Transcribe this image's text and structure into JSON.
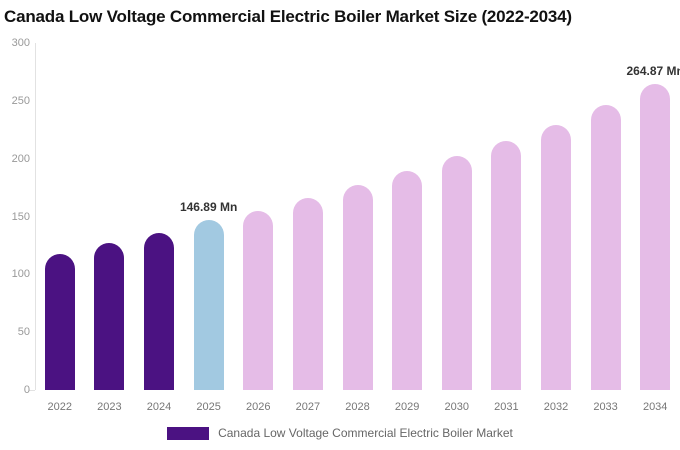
{
  "chart": {
    "title": "Canada Low Voltage Commercial Electric Boiler Market Size (2022-2034)"
  },
  "legend": {
    "label": "Canada Low Voltage Commercial Electric Boiler Market",
    "swatch_color": "#4B1282"
  },
  "chart_data": {
    "type": "bar",
    "title": "Canada Low Voltage Commercial Electric Boiler Market Size (2022-2034)",
    "xlabel": "",
    "ylabel": "",
    "categories": [
      "2022",
      "2023",
      "2024",
      "2025",
      "2026",
      "2027",
      "2028",
      "2029",
      "2030",
      "2031",
      "2032",
      "2033",
      "2034"
    ],
    "values": [
      118,
      127,
      136,
      146.89,
      155,
      166,
      177,
      189,
      202,
      215,
      229,
      246,
      264.87
    ],
    "bar_colors": [
      "#4B1282",
      "#4B1282",
      "#4B1282",
      "#A2C9E1",
      "#E5BCE7",
      "#E5BCE7",
      "#E5BCE7",
      "#E5BCE7",
      "#E5BCE7",
      "#E5BCE7",
      "#E5BCE7",
      "#E5BCE7",
      "#E5BCE7"
    ],
    "ylim": [
      0,
      300
    ],
    "yticks": [
      0,
      50,
      100,
      150,
      200,
      250,
      300
    ],
    "grid": false,
    "legend_position": "bottom",
    "annotations": [
      {
        "category": "2025",
        "text": "146.89 Mn"
      },
      {
        "category": "2034",
        "text": "264.87 Mn"
      }
    ],
    "series_color_meaning": {
      "historical": "#4B1282",
      "base_year": "#A2C9E1",
      "forecast": "#E5BCE7"
    }
  }
}
